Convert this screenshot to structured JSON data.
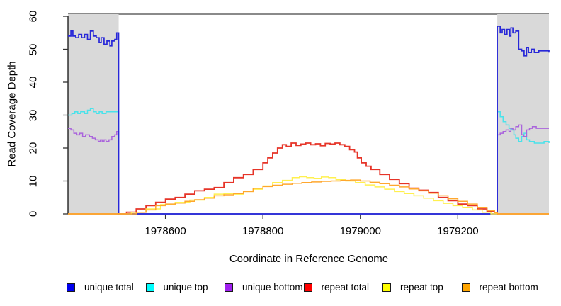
{
  "figure": {
    "xlabel": "Coordinate in Reference Genome",
    "ylabel": "Read Coverage Depth"
  },
  "chart_data": {
    "type": "line",
    "title": "",
    "xlabel": "Coordinate in Reference Genome",
    "ylabel": "Read Coverage Depth",
    "xlim": [
      1978400,
      1979387
    ],
    "ylim": [
      0,
      60
    ],
    "x_ticks": [
      1978600,
      1978800,
      1979000,
      1979200
    ],
    "y_ticks": [
      0,
      10,
      20,
      30,
      40,
      50,
      60
    ],
    "grid": false,
    "legend_position": "bottom",
    "shaded_regions": [
      {
        "name": "left-flank",
        "x0": 1978400,
        "x1": 1978504,
        "color": "#d9d9d9"
      },
      {
        "name": "right-flank",
        "x0": 1979281,
        "x1": 1979387,
        "color": "#d9d9d9"
      }
    ],
    "legend": [
      {
        "label": "unique total",
        "color": "#0000ee"
      },
      {
        "label": "unique top",
        "color": "#00ffff"
      },
      {
        "label": "unique bottom",
        "color": "#a020f0"
      },
      {
        "label": "repeat total",
        "color": "#ff0000"
      },
      {
        "label": "repeat top",
        "color": "#ffff00"
      },
      {
        "label": "repeat bottom",
        "color": "#ffa500"
      }
    ],
    "series": [
      {
        "name": "unique top",
        "color": "#4ae2ea",
        "width": 1.5,
        "points": [
          [
            1978400,
            30
          ],
          [
            1978408,
            30.5
          ],
          [
            1978414,
            31
          ],
          [
            1978420,
            30.5
          ],
          [
            1978426,
            31
          ],
          [
            1978434,
            30.5
          ],
          [
            1978440,
            31.5
          ],
          [
            1978446,
            32
          ],
          [
            1978452,
            31
          ],
          [
            1978458,
            30.5
          ],
          [
            1978464,
            31
          ],
          [
            1978470,
            30.5
          ],
          [
            1978478,
            31
          ],
          [
            1978504,
            31
          ],
          [
            1978504,
            0
          ],
          [
            1979281,
            0
          ],
          [
            1979281,
            31
          ],
          [
            1979287,
            29.5
          ],
          [
            1979293,
            28
          ],
          [
            1979299,
            27
          ],
          [
            1979305,
            26
          ],
          [
            1979311,
            25.5
          ],
          [
            1979315,
            24
          ],
          [
            1979319,
            23
          ],
          [
            1979325,
            22
          ],
          [
            1979331,
            23.5
          ],
          [
            1979336,
            24.5
          ],
          [
            1979341,
            22.5
          ],
          [
            1979347,
            22
          ],
          [
            1979357,
            21.5
          ],
          [
            1979377,
            22
          ],
          [
            1979387,
            21.5
          ]
        ]
      },
      {
        "name": "unique bottom",
        "color": "#aa64dc",
        "width": 1.5,
        "points": [
          [
            1978400,
            26
          ],
          [
            1978406,
            25.5
          ],
          [
            1978412,
            24.5
          ],
          [
            1978418,
            24
          ],
          [
            1978424,
            24.5
          ],
          [
            1978430,
            23.5
          ],
          [
            1978436,
            24
          ],
          [
            1978444,
            23.5
          ],
          [
            1978450,
            23
          ],
          [
            1978456,
            22.5
          ],
          [
            1978462,
            22
          ],
          [
            1978466,
            22.5
          ],
          [
            1978470,
            22
          ],
          [
            1978474,
            22.5
          ],
          [
            1978478,
            22
          ],
          [
            1978484,
            22.5
          ],
          [
            1978490,
            23.5
          ],
          [
            1978496,
            24
          ],
          [
            1978500,
            25
          ],
          [
            1978504,
            25
          ],
          [
            1978504,
            0
          ],
          [
            1979281,
            0
          ],
          [
            1979281,
            24
          ],
          [
            1979287,
            24.5
          ],
          [
            1979293,
            25
          ],
          [
            1979299,
            25.5
          ],
          [
            1979305,
            25
          ],
          [
            1979309,
            26
          ],
          [
            1979313,
            25.5
          ],
          [
            1979319,
            26.5
          ],
          [
            1979325,
            27
          ],
          [
            1979331,
            24
          ],
          [
            1979335,
            23.5
          ],
          [
            1979341,
            25.5
          ],
          [
            1979347,
            26
          ],
          [
            1979353,
            26.5
          ],
          [
            1979361,
            26
          ],
          [
            1979387,
            26
          ]
        ]
      },
      {
        "name": "unique total",
        "color": "#2727d8",
        "width": 1.7,
        "points": [
          [
            1978400,
            54
          ],
          [
            1978406,
            55.5
          ],
          [
            1978410,
            54
          ],
          [
            1978416,
            53.5
          ],
          [
            1978422,
            54.5
          ],
          [
            1978428,
            53.5
          ],
          [
            1978434,
            54.5
          ],
          [
            1978440,
            53
          ],
          [
            1978446,
            55.5
          ],
          [
            1978452,
            54
          ],
          [
            1978458,
            53.5
          ],
          [
            1978464,
            52
          ],
          [
            1978468,
            53.5
          ],
          [
            1978474,
            51.5
          ],
          [
            1978480,
            52.5
          ],
          [
            1978486,
            51
          ],
          [
            1978490,
            52.5
          ],
          [
            1978496,
            53
          ],
          [
            1978500,
            55
          ],
          [
            1978504,
            55
          ],
          [
            1978504,
            0
          ],
          [
            1979281,
            0
          ],
          [
            1979281,
            57
          ],
          [
            1979287,
            55
          ],
          [
            1979291,
            56
          ],
          [
            1979296,
            54.5
          ],
          [
            1979301,
            56
          ],
          [
            1979306,
            54
          ],
          [
            1979309,
            56.5
          ],
          [
            1979313,
            55
          ],
          [
            1979319,
            55.5
          ],
          [
            1979325,
            50
          ],
          [
            1979331,
            49.5
          ],
          [
            1979336,
            48
          ],
          [
            1979341,
            50.5
          ],
          [
            1979345,
            49
          ],
          [
            1979351,
            50
          ],
          [
            1979357,
            49
          ],
          [
            1979366,
            49.5
          ],
          [
            1979387,
            49
          ]
        ]
      },
      {
        "name": "repeat total",
        "color": "#e63428",
        "width": 1.8,
        "points": [
          [
            1978400,
            0
          ],
          [
            1978504,
            0
          ],
          [
            1978520,
            0.5
          ],
          [
            1978540,
            1.5
          ],
          [
            1978560,
            2.5
          ],
          [
            1978580,
            3.5
          ],
          [
            1978600,
            4.5
          ],
          [
            1978620,
            5
          ],
          [
            1978640,
            6
          ],
          [
            1978660,
            7
          ],
          [
            1978680,
            7.5
          ],
          [
            1978700,
            8
          ],
          [
            1978720,
            9.5
          ],
          [
            1978740,
            11
          ],
          [
            1978760,
            12
          ],
          [
            1978780,
            13.5
          ],
          [
            1978800,
            15.5
          ],
          [
            1978810,
            17
          ],
          [
            1978820,
            18.5
          ],
          [
            1978830,
            20
          ],
          [
            1978840,
            21
          ],
          [
            1978848,
            20.5
          ],
          [
            1978858,
            21.5
          ],
          [
            1978868,
            20.8
          ],
          [
            1978878,
            21.2
          ],
          [
            1978888,
            21.5
          ],
          [
            1978898,
            21
          ],
          [
            1978908,
            21.3
          ],
          [
            1978918,
            20.7
          ],
          [
            1978928,
            21.4
          ],
          [
            1978938,
            21.2
          ],
          [
            1978948,
            21.5
          ],
          [
            1978958,
            21
          ],
          [
            1978968,
            20.5
          ],
          [
            1978978,
            19.5
          ],
          [
            1978988,
            18.8
          ],
          [
            1978994,
            17
          ],
          [
            1979002,
            15.5
          ],
          [
            1979012,
            14.5
          ],
          [
            1979022,
            13.5
          ],
          [
            1979040,
            12
          ],
          [
            1979060,
            10.5
          ],
          [
            1979080,
            9.2
          ],
          [
            1979100,
            7.8
          ],
          [
            1979120,
            7.2
          ],
          [
            1979140,
            6.5
          ],
          [
            1979160,
            5
          ],
          [
            1979180,
            4
          ],
          [
            1979200,
            3
          ],
          [
            1979220,
            2.5
          ],
          [
            1979240,
            1.5
          ],
          [
            1979260,
            0.8
          ],
          [
            1979275,
            0.2
          ],
          [
            1979281,
            0
          ],
          [
            1979387,
            0
          ]
        ]
      },
      {
        "name": "repeat top",
        "color": "#fff04f",
        "width": 1.5,
        "points": [
          [
            1978400,
            0
          ],
          [
            1978504,
            0
          ],
          [
            1978530,
            0.5
          ],
          [
            1978560,
            1.5
          ],
          [
            1978590,
            2.8
          ],
          [
            1978620,
            3.5
          ],
          [
            1978650,
            4.2
          ],
          [
            1978680,
            5
          ],
          [
            1978700,
            6
          ],
          [
            1978720,
            6.2
          ],
          [
            1978740,
            6
          ],
          [
            1978760,
            6.8
          ],
          [
            1978780,
            7.5
          ],
          [
            1978800,
            8.5
          ],
          [
            1978820,
            9.5
          ],
          [
            1978840,
            10.2
          ],
          [
            1978860,
            11
          ],
          [
            1978875,
            11.3
          ],
          [
            1978890,
            11
          ],
          [
            1978905,
            10.8
          ],
          [
            1978920,
            11.2
          ],
          [
            1978935,
            11
          ],
          [
            1978950,
            10.4
          ],
          [
            1978970,
            10
          ],
          [
            1978990,
            9.5
          ],
          [
            1979010,
            8.8
          ],
          [
            1979030,
            8.2
          ],
          [
            1979050,
            7.5
          ],
          [
            1979070,
            6.8
          ],
          [
            1979090,
            6.2
          ],
          [
            1979110,
            5.5
          ],
          [
            1979130,
            4.8
          ],
          [
            1979150,
            4
          ],
          [
            1979170,
            3.2
          ],
          [
            1979190,
            2.5
          ],
          [
            1979210,
            2
          ],
          [
            1979230,
            1.2
          ],
          [
            1979250,
            0.5
          ],
          [
            1979268,
            0
          ],
          [
            1979387,
            0
          ]
        ]
      },
      {
        "name": "repeat bottom",
        "color": "#ffa72e",
        "width": 1.5,
        "points": [
          [
            1978400,
            0
          ],
          [
            1978520,
            0
          ],
          [
            1978540,
            0.5
          ],
          [
            1978560,
            1.2
          ],
          [
            1978580,
            2.5
          ],
          [
            1978600,
            3
          ],
          [
            1978620,
            3.3
          ],
          [
            1978640,
            3.8
          ],
          [
            1978660,
            4.3
          ],
          [
            1978680,
            4.8
          ],
          [
            1978700,
            5.5
          ],
          [
            1978720,
            5.8
          ],
          [
            1978740,
            6.2
          ],
          [
            1978760,
            6.8
          ],
          [
            1978780,
            7.8
          ],
          [
            1978800,
            8.3
          ],
          [
            1978820,
            8.7
          ],
          [
            1978840,
            9
          ],
          [
            1978860,
            9.3
          ],
          [
            1978880,
            9.5
          ],
          [
            1978900,
            9.7
          ],
          [
            1978920,
            9.9
          ],
          [
            1978940,
            10
          ],
          [
            1978960,
            10.2
          ],
          [
            1978980,
            10.3
          ],
          [
            1979000,
            10
          ],
          [
            1979020,
            9.6
          ],
          [
            1979040,
            9.2
          ],
          [
            1979060,
            8.7
          ],
          [
            1979080,
            8.2
          ],
          [
            1979100,
            7.6
          ],
          [
            1979120,
            7
          ],
          [
            1979140,
            6.3
          ],
          [
            1979160,
            5.5
          ],
          [
            1979180,
            4.6
          ],
          [
            1979200,
            3.8
          ],
          [
            1979220,
            3
          ],
          [
            1979240,
            2
          ],
          [
            1979260,
            1
          ],
          [
            1979275,
            0.3
          ],
          [
            1979281,
            0
          ],
          [
            1979387,
            0
          ]
        ]
      }
    ]
  }
}
